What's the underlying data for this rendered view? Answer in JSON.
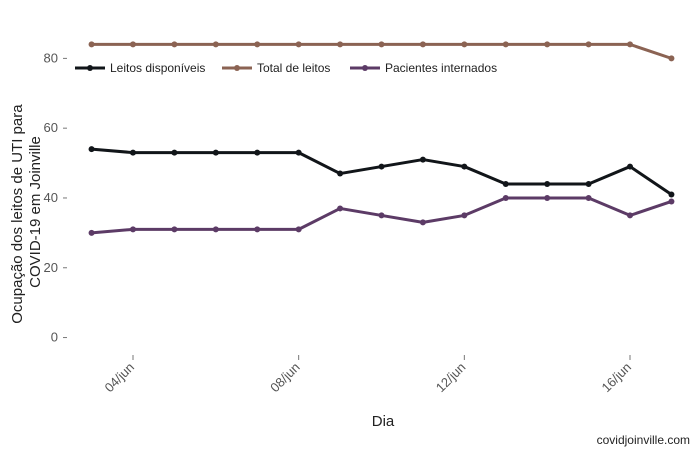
{
  "chart_data": {
    "type": "line",
    "xlabel": "Dia",
    "ylabel_lines": [
      "Ocupação dos leitos de UTI para",
      "COVID-19 em Joinville"
    ],
    "x_tick_labels": [
      "04/jun",
      "08/jun",
      "12/jun",
      "16/jun"
    ],
    "x_tick_days": [
      4,
      8,
      12,
      16
    ],
    "x_range": [
      2.6,
      17.4
    ],
    "y_ticks": [
      0,
      20,
      40,
      60,
      80
    ],
    "y_range": [
      -5,
      91
    ],
    "x_days": [
      3,
      4,
      5,
      6,
      7,
      8,
      9,
      10,
      11,
      12,
      13,
      14,
      15,
      16,
      17
    ],
    "legend_position": "top-left",
    "series": [
      {
        "name": "Leitos disponíveis",
        "color": "#111519",
        "values": [
          54,
          53,
          53,
          53,
          53,
          53,
          47,
          49,
          51,
          49,
          44,
          44,
          44,
          49,
          41
        ]
      },
      {
        "name": "Total de leitos",
        "color": "#8b6353",
        "values": [
          84,
          84,
          84,
          84,
          84,
          84,
          84,
          84,
          84,
          84,
          84,
          84,
          84,
          84,
          80
        ]
      },
      {
        "name": "Pacientes internados",
        "color": "#5c3b66",
        "values": [
          30,
          31,
          31,
          31,
          31,
          31,
          37,
          35,
          33,
          35,
          40,
          40,
          40,
          35,
          39
        ]
      }
    ]
  },
  "caption": "covidjoinville.com"
}
